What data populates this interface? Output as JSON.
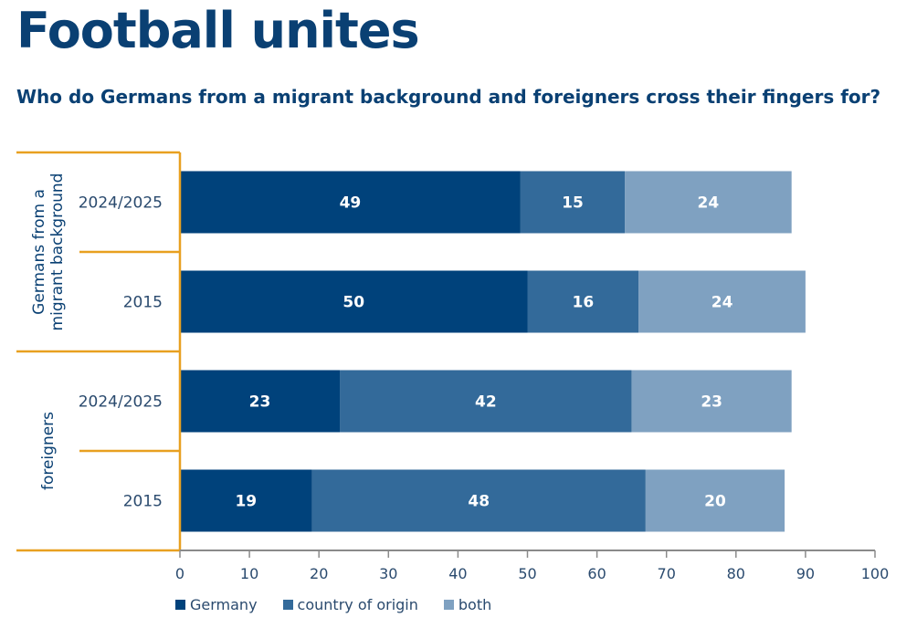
{
  "title": "Football unites",
  "subtitle": "Who do Germans from a migrant background and foreigners cross their fingers for?",
  "chart_data": {
    "type": "bar",
    "orientation": "horizontal",
    "stacked": true,
    "groups": [
      {
        "label": "Germans from a migrant background",
        "rows": [
          "2024/2025",
          "2015"
        ]
      },
      {
        "label": "foreigners",
        "rows": [
          "2024/2025",
          "2015"
        ]
      }
    ],
    "categories": [
      "2024/2025",
      "2015",
      "2024/2025",
      "2015"
    ],
    "series": [
      {
        "name": "Germany",
        "color": "#00427b",
        "values": [
          49,
          50,
          23,
          19
        ]
      },
      {
        "name": "country of origin",
        "color": "#336a9a",
        "values": [
          15,
          16,
          42,
          48
        ]
      },
      {
        "name": "both",
        "color": "#7fa1c1",
        "values": [
          24,
          24,
          23,
          20
        ]
      }
    ],
    "xlim": [
      0,
      100
    ],
    "xticks": [
      0,
      10,
      20,
      30,
      40,
      50,
      60,
      70,
      80,
      90,
      100
    ],
    "legend_position": "bottom-left",
    "grid": false
  },
  "colors": {
    "accent": "#e8a020",
    "axis": "#8a8a8a",
    "text": "#0a4073",
    "label": "#2a4a6e"
  }
}
